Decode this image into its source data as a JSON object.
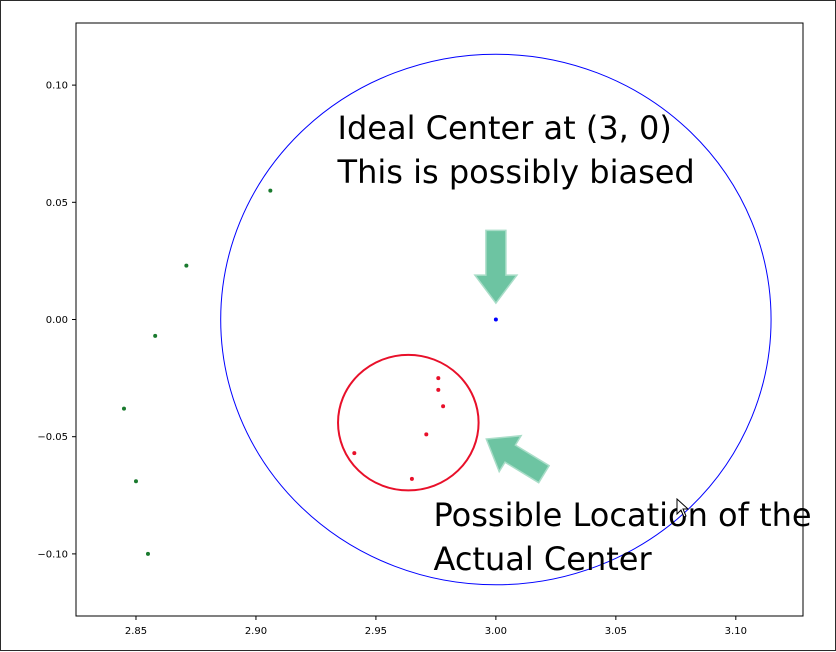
{
  "chart_data": {
    "type": "scatter",
    "xlim": [
      2.825,
      3.128
    ],
    "ylim": [
      -0.1265,
      0.1265
    ],
    "grid": false,
    "x_ticks": [
      {
        "value": 2.85,
        "label": "2.85"
      },
      {
        "value": 2.9,
        "label": "2.90"
      },
      {
        "value": 2.95,
        "label": "2.95"
      },
      {
        "value": 3.0,
        "label": "3.00"
      },
      {
        "value": 3.05,
        "label": "3.05"
      },
      {
        "value": 3.1,
        "label": "3.10"
      }
    ],
    "y_ticks": [
      {
        "value": 0.1,
        "label": "0.10"
      },
      {
        "value": 0.05,
        "label": "0.05"
      },
      {
        "value": 0.0,
        "label": "0.00"
      },
      {
        "value": -0.05,
        "label": "−0.05"
      },
      {
        "value": -0.1,
        "label": "−0.10"
      }
    ],
    "series": [
      {
        "color": "#1a7a2e",
        "points": [
          [
            2.906,
            0.055
          ],
          [
            2.871,
            0.023
          ],
          [
            2.858,
            -0.007
          ],
          [
            2.845,
            -0.038
          ],
          [
            2.85,
            -0.069
          ],
          [
            2.855,
            -0.1
          ]
        ]
      },
      {
        "color": "#0000ff",
        "points": [
          [
            3.0,
            0.0
          ]
        ]
      },
      {
        "color": "#e8102a",
        "points": [
          [
            2.976,
            -0.025
          ],
          [
            2.976,
            -0.03
          ],
          [
            2.978,
            -0.037
          ],
          [
            2.971,
            -0.049
          ],
          [
            2.941,
            -0.057
          ],
          [
            2.965,
            -0.068
          ]
        ]
      }
    ],
    "circles": [
      {
        "color": "#0000ff",
        "center": [
          3.0,
          0.0
        ],
        "radius": 0.1155,
        "stroke_width": 1
      },
      {
        "color": "#e8102a",
        "center": [
          2.9635,
          -0.044
        ],
        "radius": 0.0295,
        "stroke_width": 2
      }
    ],
    "arrows": [
      {
        "color": "#6dc4a2",
        "from": [
          3.0,
          0.038
        ],
        "to": [
          3.0,
          0.007
        ]
      },
      {
        "color": "#6dc4a2",
        "from": [
          3.02,
          -0.066
        ],
        "to": [
          2.996,
          -0.051
        ]
      }
    ],
    "annotations": [
      {
        "lines": [
          "Ideal Center at (3, 0)",
          "This is possibly biased"
        ],
        "anchor": [
          2.934,
          0.077
        ]
      },
      {
        "lines": [
          "Possible Location of the",
          "Actual Center"
        ],
        "anchor": [
          2.974,
          -0.088
        ]
      }
    ]
  }
}
